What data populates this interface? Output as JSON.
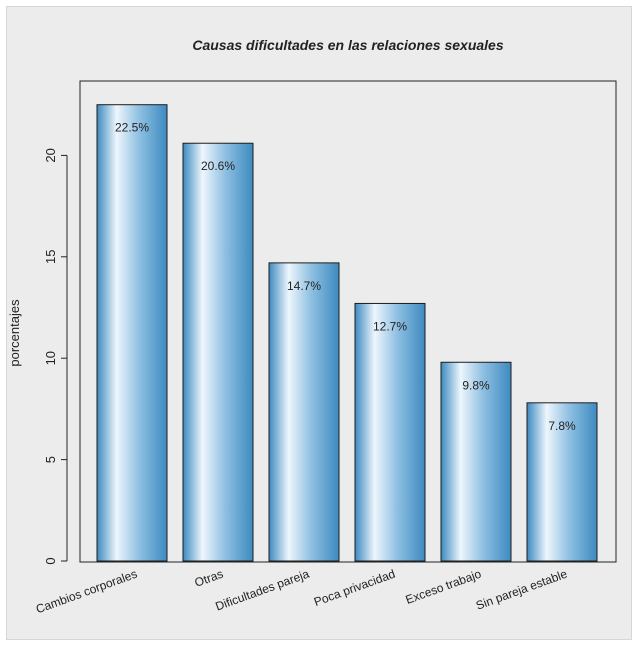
{
  "chart_data": {
    "type": "bar",
    "title": "Causas dificultades en las relaciones sexuales",
    "xlabel": "",
    "ylabel": "porcentajes",
    "categories": [
      "Cambios corporales",
      "Otras",
      "Dificultades pareja",
      "Poca privacidad",
      "Exceso trabajo",
      "Sin pareja estable"
    ],
    "values": [
      22.5,
      20.6,
      14.7,
      12.7,
      9.8,
      7.8
    ],
    "data_labels": [
      "22.5%",
      "20.6%",
      "14.7%",
      "12.7%",
      "9.8%",
      "7.8%"
    ],
    "ylim": [
      0,
      23
    ],
    "yticks": [
      0,
      5,
      10,
      15,
      20
    ],
    "grid": false,
    "legend": "none",
    "colors": {
      "bar_edge": "#2e6f9c",
      "bar_light": "#eef6fc",
      "bar_dark": "#3d8ac0",
      "background": "#ececec"
    }
  }
}
